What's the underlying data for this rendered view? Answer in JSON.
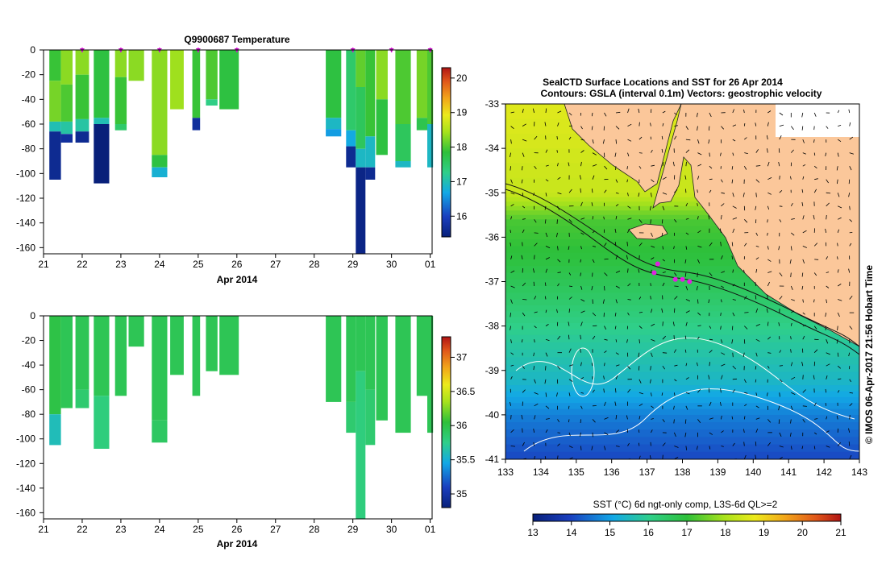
{
  "chart_data": [
    {
      "type": "heatmap",
      "title": "Q9900687  Temperature",
      "xlabel": "Apr 2014",
      "x_ticks": [
        "21",
        "22",
        "23",
        "24",
        "25",
        "26",
        "27",
        "28",
        "29",
        "30",
        "01"
      ],
      "y_ticks": [
        "0",
        "-20",
        "-40",
        "-60",
        "-80",
        "-100",
        "-120",
        "-140",
        "-160"
      ],
      "ylim": [
        -165,
        0
      ],
      "colorbar": {
        "ticks": [
          "16",
          "17",
          "18",
          "19",
          "20"
        ],
        "range": [
          15.4,
          20.3
        ]
      },
      "surface_markers_day": [
        22.0,
        23.0,
        24.0,
        25.0,
        26.0,
        29.0,
        30.0,
        31.0
      ],
      "profiles": [
        {
          "day": 21.3,
          "w": 0.3,
          "depth": 105,
          "layers": [
            [
              0,
              17.9
            ],
            [
              25,
              18.2
            ],
            [
              58,
              17.0
            ],
            [
              66,
              15.6
            ]
          ]
        },
        {
          "day": 21.6,
          "w": 0.3,
          "depth": 75,
          "layers": [
            [
              0,
              18.3
            ],
            [
              28,
              18.0
            ],
            [
              58,
              17.1
            ],
            [
              68,
              15.7
            ]
          ]
        },
        {
          "day": 22.0,
          "w": 0.35,
          "depth": 75,
          "layers": [
            [
              0,
              18.3
            ],
            [
              20,
              17.9
            ],
            [
              56,
              17.1
            ],
            [
              66,
              15.6
            ]
          ]
        },
        {
          "day": 22.5,
          "w": 0.4,
          "depth": 108,
          "layers": [
            [
              0,
              17.8
            ],
            [
              55,
              17.0
            ],
            [
              60,
              15.4
            ]
          ]
        },
        {
          "day": 23.0,
          "w": 0.3,
          "depth": 65,
          "layers": [
            [
              0,
              18.3
            ],
            [
              22,
              17.9
            ],
            [
              60,
              17.5
            ]
          ]
        },
        {
          "day": 23.4,
          "w": 0.4,
          "depth": 25,
          "layers": [
            [
              0,
              18.3
            ]
          ]
        },
        {
          "day": 24.0,
          "w": 0.4,
          "depth": 103,
          "layers": [
            [
              0,
              18.3
            ],
            [
              85,
              17.8
            ],
            [
              95,
              16.8
            ]
          ]
        },
        {
          "day": 24.45,
          "w": 0.35,
          "depth": 48,
          "layers": [
            [
              0,
              18.4
            ]
          ]
        },
        {
          "day": 24.95,
          "w": 0.2,
          "depth": 65,
          "layers": [
            [
              0,
              17.9
            ],
            [
              55,
              15.7
            ]
          ]
        },
        {
          "day": 25.35,
          "w": 0.3,
          "depth": 45,
          "layers": [
            [
              0,
              18.0
            ],
            [
              40,
              17.3
            ]
          ]
        },
        {
          "day": 25.8,
          "w": 0.5,
          "depth": 48,
          "layers": [
            [
              0,
              17.8
            ]
          ]
        },
        {
          "day": 28.5,
          "w": 0.4,
          "depth": 70,
          "layers": [
            [
              0,
              17.8
            ],
            [
              55,
              16.9
            ],
            [
              64,
              16.6
            ]
          ]
        },
        {
          "day": 28.95,
          "w": 0.25,
          "depth": 95,
          "layers": [
            [
              0,
              17.5
            ],
            [
              65,
              16.7
            ],
            [
              78,
              15.6
            ]
          ]
        },
        {
          "day": 29.2,
          "w": 0.25,
          "depth": 165,
          "layers": [
            [
              0,
              18.1
            ],
            [
              30,
              17.6
            ],
            [
              80,
              16.9
            ],
            [
              95,
              15.5
            ]
          ]
        },
        {
          "day": 29.45,
          "w": 0.25,
          "depth": 105,
          "layers": [
            [
              0,
              17.9
            ],
            [
              70,
              16.9
            ],
            [
              95,
              15.6
            ]
          ]
        },
        {
          "day": 29.75,
          "w": 0.3,
          "depth": 85,
          "layers": [
            [
              0,
              18.3
            ],
            [
              40,
              17.8
            ]
          ]
        },
        {
          "day": 30.3,
          "w": 0.4,
          "depth": 95,
          "layers": [
            [
              0,
              18.0
            ],
            [
              60,
              17.6
            ],
            [
              90,
              16.9
            ]
          ]
        },
        {
          "day": 30.8,
          "w": 0.3,
          "depth": 65,
          "layers": [
            [
              0,
              18.2
            ],
            [
              55,
              17.7
            ]
          ]
        },
        {
          "day": 31.0,
          "w": 0.15,
          "depth": 95,
          "layers": [
            [
              0,
              18.0
            ],
            [
              60,
              16.9
            ]
          ]
        }
      ]
    },
    {
      "type": "heatmap",
      "title": "",
      "xlabel": "Apr 2014",
      "x_ticks": [
        "21",
        "22",
        "23",
        "24",
        "25",
        "26",
        "27",
        "28",
        "29",
        "30",
        "01"
      ],
      "y_ticks": [
        "0",
        "-20",
        "-40",
        "-60",
        "-80",
        "-100",
        "-120",
        "-140",
        "-160"
      ],
      "ylim": [
        -165,
        0
      ],
      "colorbar": {
        "ticks": [
          "35",
          "35.5",
          "36",
          "36.5",
          "37"
        ],
        "range": [
          34.8,
          37.3
        ]
      },
      "profiles": [
        {
          "day": 21.3,
          "w": 0.3,
          "depth": 105,
          "layers": [
            [
              0,
              36.0
            ],
            [
              80,
              35.6
            ]
          ]
        },
        {
          "day": 21.6,
          "w": 0.3,
          "depth": 75,
          "layers": [
            [
              0,
              35.95
            ]
          ]
        },
        {
          "day": 22.0,
          "w": 0.35,
          "depth": 75,
          "layers": [
            [
              0,
              35.95
            ],
            [
              60,
              35.85
            ]
          ]
        },
        {
          "day": 22.5,
          "w": 0.4,
          "depth": 108,
          "layers": [
            [
              0,
              35.95
            ],
            [
              65,
              35.8
            ]
          ]
        },
        {
          "day": 23.0,
          "w": 0.3,
          "depth": 65,
          "layers": [
            [
              0,
              35.95
            ]
          ]
        },
        {
          "day": 23.4,
          "w": 0.4,
          "depth": 25,
          "layers": [
            [
              0,
              35.95
            ]
          ]
        },
        {
          "day": 24.0,
          "w": 0.4,
          "depth": 103,
          "layers": [
            [
              0,
              35.95
            ],
            [
              85,
              35.9
            ]
          ]
        },
        {
          "day": 24.45,
          "w": 0.35,
          "depth": 48,
          "layers": [
            [
              0,
              35.95
            ]
          ]
        },
        {
          "day": 24.95,
          "w": 0.2,
          "depth": 65,
          "layers": [
            [
              0,
              35.95
            ]
          ]
        },
        {
          "day": 25.35,
          "w": 0.3,
          "depth": 45,
          "layers": [
            [
              0,
              35.95
            ]
          ]
        },
        {
          "day": 25.8,
          "w": 0.5,
          "depth": 48,
          "layers": [
            [
              0,
              35.95
            ]
          ]
        },
        {
          "day": 28.5,
          "w": 0.4,
          "depth": 70,
          "layers": [
            [
              0,
              35.95
            ]
          ]
        },
        {
          "day": 28.95,
          "w": 0.25,
          "depth": 95,
          "layers": [
            [
              0,
              35.95
            ],
            [
              70,
              35.85
            ]
          ]
        },
        {
          "day": 29.2,
          "w": 0.25,
          "depth": 165,
          "layers": [
            [
              0,
              35.95
            ],
            [
              45,
              35.8
            ]
          ]
        },
        {
          "day": 29.45,
          "w": 0.25,
          "depth": 105,
          "layers": [
            [
              0,
              35.95
            ],
            [
              60,
              35.85
            ]
          ]
        },
        {
          "day": 29.75,
          "w": 0.3,
          "depth": 85,
          "layers": [
            [
              0,
              35.95
            ]
          ]
        },
        {
          "day": 30.3,
          "w": 0.4,
          "depth": 95,
          "layers": [
            [
              0,
              35.95
            ]
          ]
        },
        {
          "day": 30.8,
          "w": 0.3,
          "depth": 65,
          "layers": [
            [
              0,
              35.95
            ]
          ]
        },
        {
          "day": 31.0,
          "w": 0.15,
          "depth": 95,
          "layers": [
            [
              0,
              35.95
            ]
          ]
        }
      ]
    },
    {
      "type": "heatmap",
      "title": "SealCTD Surface Locations and SST for 26 Apr 2014",
      "subtitle": "Contours: GSLA (interval 0.1m) Vectors: geostrophic velocity",
      "x_ticks": [
        "133",
        "134",
        "135",
        "136",
        "137",
        "138",
        "139",
        "140",
        "141",
        "142",
        "143"
      ],
      "y_ticks": [
        "-33",
        "-34",
        "-35",
        "-36",
        "-37",
        "-38",
        "-39",
        "-40",
        "-41"
      ],
      "xlim": [
        133,
        143
      ],
      "ylim": [
        -41,
        -33
      ],
      "colorbar": {
        "label": "SST (°C) 6d ngt-only comp, L3S-6d QL>=2",
        "ticks": [
          "13",
          "14",
          "15",
          "16",
          "17",
          "18",
          "19",
          "20",
          "21"
        ],
        "range": [
          13,
          21
        ]
      },
      "seal_locations": [
        [
          137.3,
          -36.6
        ],
        [
          137.2,
          -36.8
        ],
        [
          137.8,
          -36.95
        ],
        [
          138.0,
          -36.95
        ],
        [
          138.2,
          -37.0
        ]
      ],
      "sst_bands": [
        [
          -33.0,
          18.6
        ],
        [
          -35.0,
          18.3
        ],
        [
          -35.6,
          17.2
        ],
        [
          -36.5,
          16.9
        ],
        [
          -37.4,
          16.4
        ],
        [
          -38.2,
          15.9
        ],
        [
          -39.2,
          15.4
        ],
        [
          -40.0,
          14.6
        ],
        [
          -41.0,
          14.0
        ]
      ]
    }
  ],
  "side_label": "© IMOS 06-Apr-2017 21:56 Hobart Time"
}
